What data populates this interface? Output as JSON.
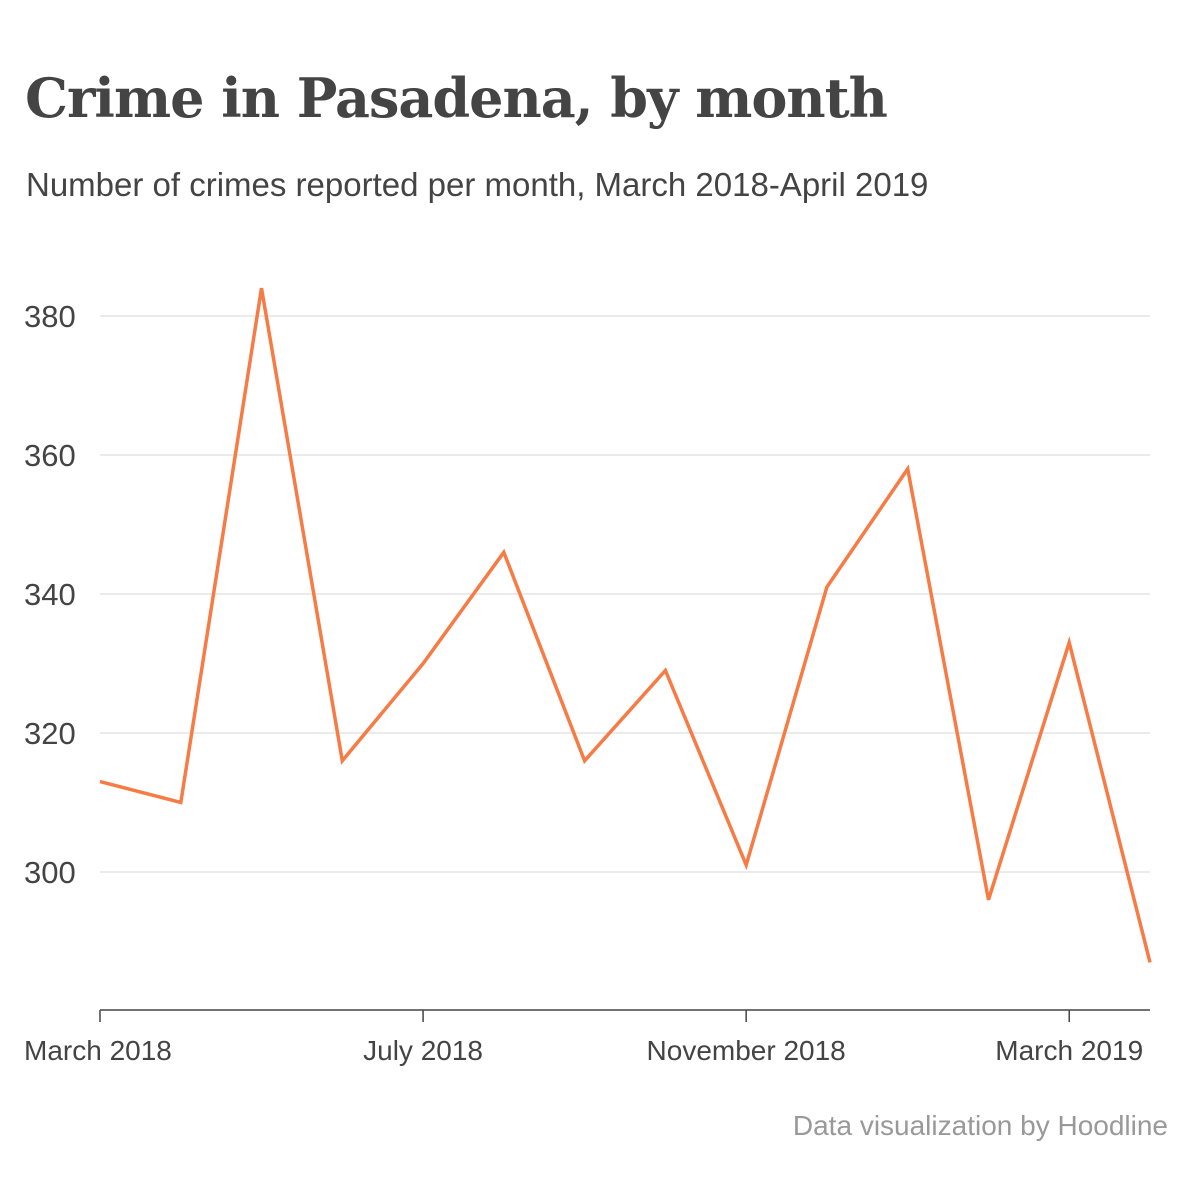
{
  "chart_data": {
    "type": "line",
    "title": "Crime in Pasadena, by month",
    "subtitle": "Number of crimes reported per month, March 2018-April 2019",
    "xlabel": "",
    "ylabel": "",
    "x": [
      "2018-03",
      "2018-04",
      "2018-05",
      "2018-06",
      "2018-07",
      "2018-08",
      "2018-09",
      "2018-10",
      "2018-11",
      "2018-12",
      "2019-01",
      "2019-02",
      "2019-03",
      "2019-04"
    ],
    "series": [
      {
        "values": [
          313,
          310,
          384,
          316,
          330,
          346,
          316,
          329,
          301,
          341,
          358,
          296,
          333,
          287
        ],
        "color": "#f77b45"
      }
    ],
    "ylim": [
      280,
      390
    ],
    "yticks": [
      300,
      320,
      340,
      360,
      380
    ],
    "xticks": [
      {
        "label": "March 2018",
        "at": "2018-03"
      },
      {
        "label": "July 2018",
        "at": "2018-07"
      },
      {
        "label": "November 2018",
        "at": "2018-11"
      },
      {
        "label": "March 2019",
        "at": "2019-03"
      }
    ],
    "grid": true,
    "legend": "none"
  },
  "credit": "Data visualization by Hoodline"
}
